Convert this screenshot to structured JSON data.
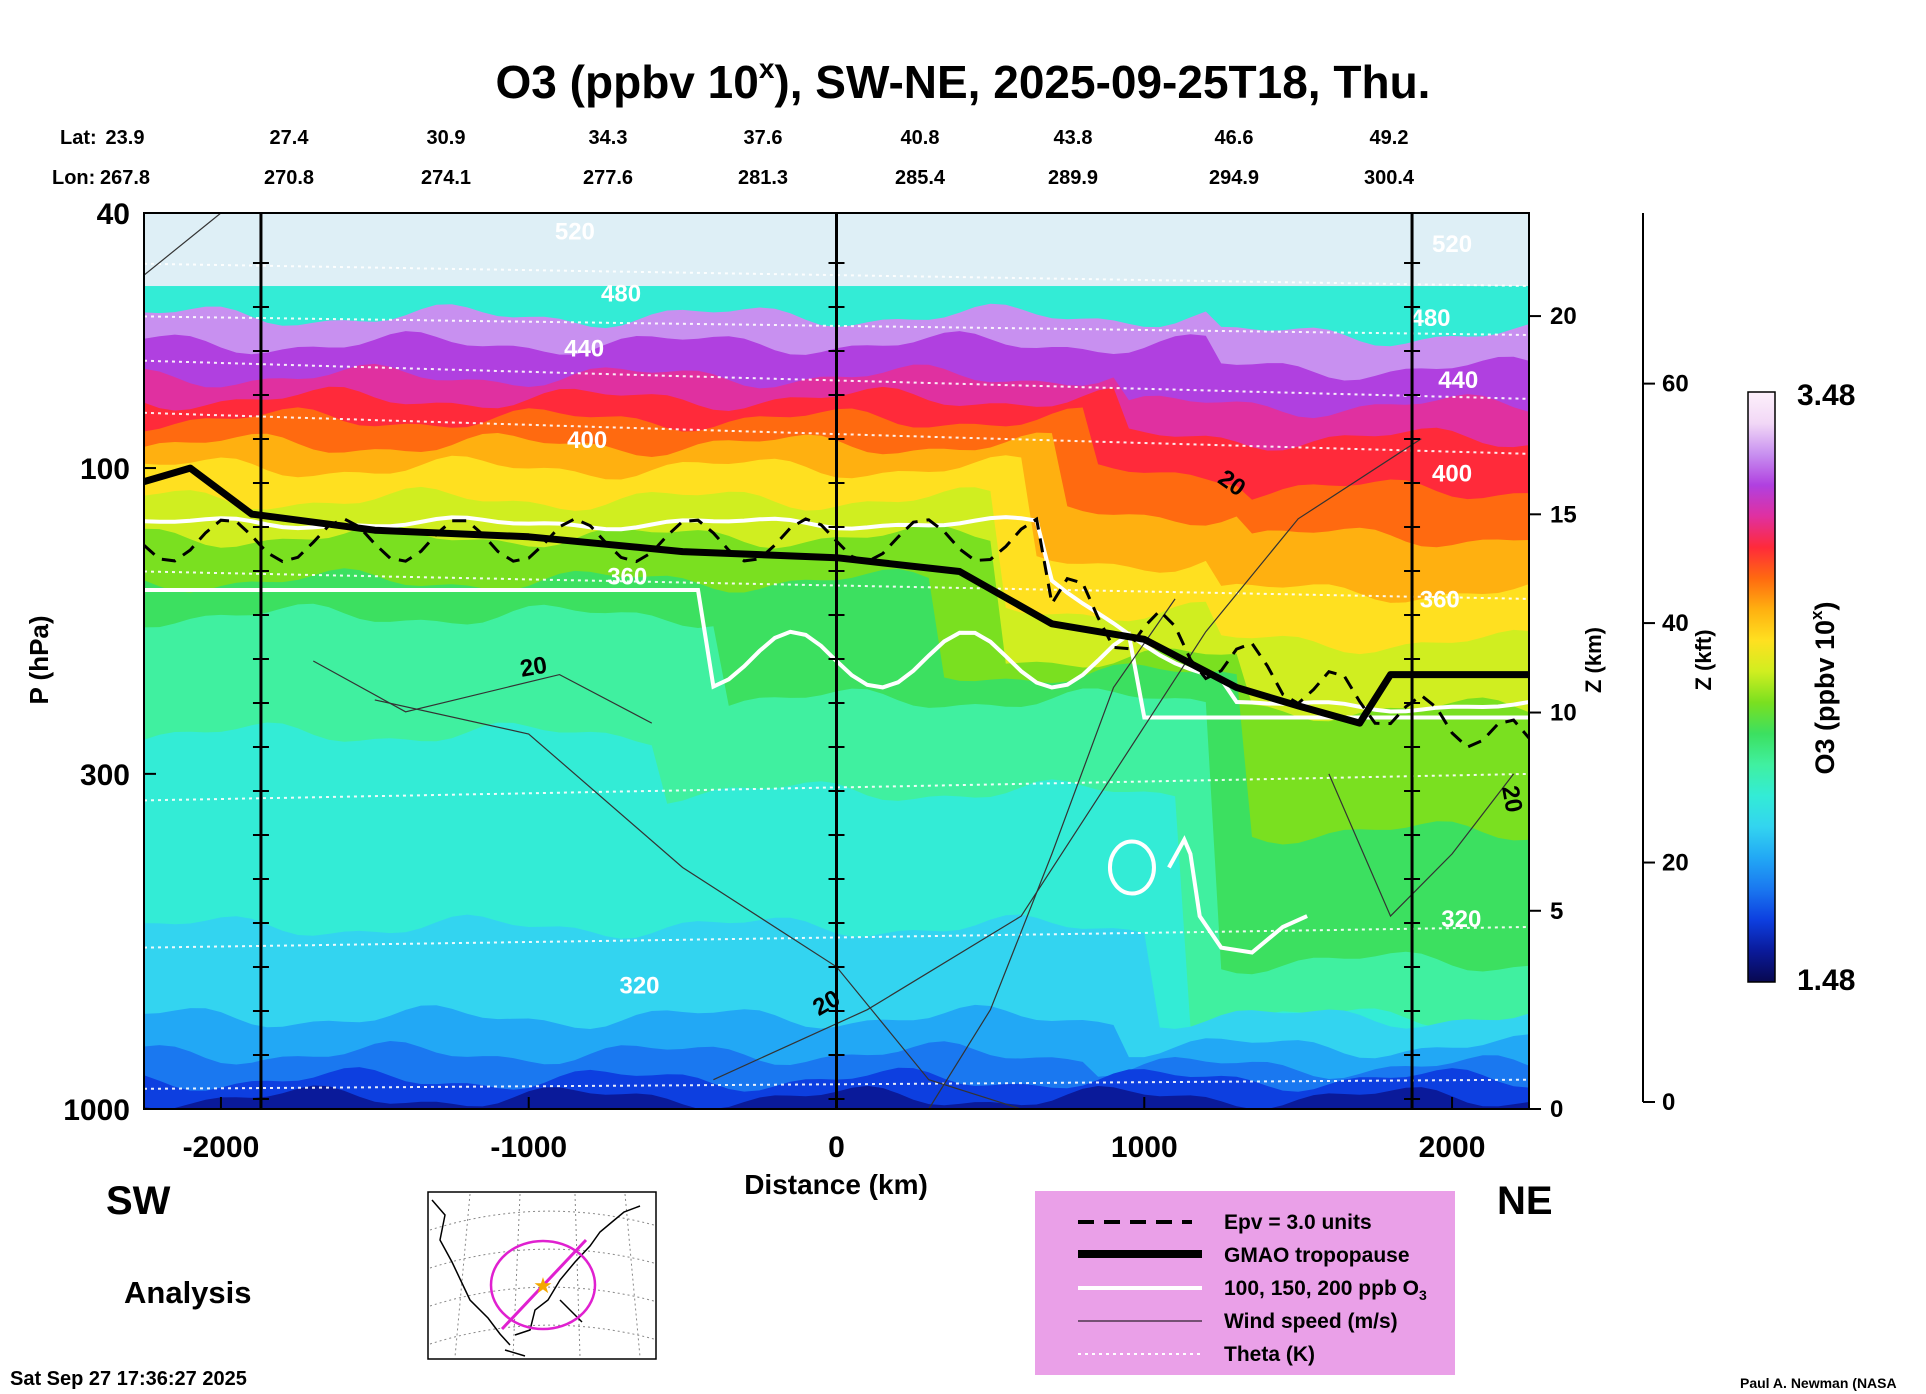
{
  "header": {
    "title_main": "O3 (ppbv 10",
    "title_sup": "x",
    "title_rest": "), SW-NE, 2025-09-25T18, Thu."
  },
  "coords": {
    "lat_label": "Lat:",
    "lon_label": "Lon:",
    "lat": [
      "23.9",
      "27.4",
      "30.9",
      "34.3",
      "37.6",
      "40.8",
      "43.8",
      "46.6",
      "49.2"
    ],
    "lon": [
      "267.8",
      "270.8",
      "274.1",
      "277.6",
      "281.3",
      "285.4",
      "289.9",
      "294.9",
      "300.4"
    ]
  },
  "chart_data": {
    "type": "heatmap",
    "xlabel": "Distance (km)",
    "ylabel": "P (hPa)",
    "xlim": [
      -2250,
      2250
    ],
    "ylim": [
      1000,
      40
    ],
    "x_ticks": [
      "-2000",
      "-1000",
      "0",
      "1000",
      "2000"
    ],
    "x_tick_values": [
      -2000,
      -1000,
      0,
      1000,
      2000
    ],
    "y_ticks": [
      "40",
      "100",
      "300",
      "1000"
    ],
    "y_tick_values": [
      40,
      100,
      300,
      1000
    ],
    "z_km_label": "Z (km)",
    "z_km_ticks": [
      "20",
      "15",
      "10",
      "5",
      "0"
    ],
    "z_km_values": [
      20,
      15,
      10,
      5,
      0
    ],
    "z_kft_label": "Z (kft)",
    "z_kft_ticks": [
      "60",
      "40",
      "20",
      "0"
    ],
    "z_kft_values": [
      60,
      40,
      20,
      0
    ],
    "colorbar_label_main": "O3 (ppbv 10",
    "colorbar_label_sup": "x",
    "colorbar_label_end": ")",
    "colorbar_max": "3.48",
    "colorbar_min": "1.48",
    "theta_labels": [
      {
        "text": "520",
        "x": -850,
        "p": 44
      },
      {
        "text": "480",
        "x": -700,
        "p": 55
      },
      {
        "text": "440",
        "x": -820,
        "p": 67
      },
      {
        "text": "400",
        "x": -810,
        "p": 93
      },
      {
        "text": "360",
        "x": -680,
        "p": 152
      },
      {
        "text": "320",
        "x": -640,
        "p": 660
      },
      {
        "text": "520",
        "x": 2000,
        "p": 46
      },
      {
        "text": "480",
        "x": 1930,
        "p": 60
      },
      {
        "text": "440",
        "x": 2020,
        "p": 75
      },
      {
        "text": "400",
        "x": 2000,
        "p": 105
      },
      {
        "text": "360",
        "x": 1960,
        "p": 165
      },
      {
        "text": "320",
        "x": 2030,
        "p": 520
      }
    ],
    "wind_labels": [
      {
        "text": "20",
        "x": -980,
        "p": 210,
        "rot": -10
      },
      {
        "text": "20",
        "x": -20,
        "p": 700,
        "rot": -30
      },
      {
        "text": "20",
        "x": 1270,
        "p": 108,
        "rot": 35
      },
      {
        "text": "20",
        "x": 2170,
        "p": 330,
        "rot": 80
      }
    ],
    "side_labels": {
      "left": "SW",
      "right": "NE",
      "analysis": "Analysis"
    },
    "legend": [
      {
        "label": "Epv = 3.0 units",
        "style": "dashed"
      },
      {
        "label": "GMAO tropopause",
        "style": "thick"
      },
      {
        "label": "100, 150, 200 ppb O",
        "sub": "3",
        "style": "white"
      },
      {
        "label": "Wind speed (m/s)",
        "style": "thin"
      },
      {
        "label": "Theta (K)",
        "style": "dotted"
      }
    ],
    "tropopause_p": [
      [
        -2250,
        105
      ],
      [
        -2100,
        100
      ],
      [
        -1900,
        118
      ],
      [
        -1500,
        125
      ],
      [
        -1000,
        128
      ],
      [
        -500,
        135
      ],
      [
        0,
        138
      ],
      [
        400,
        145
      ],
      [
        700,
        175
      ],
      [
        1000,
        185
      ],
      [
        1300,
        220
      ],
      [
        1500,
        235
      ],
      [
        1700,
        250
      ],
      [
        1800,
        210
      ],
      [
        2250,
        210
      ]
    ],
    "colors": {
      "levels": [
        "#080850",
        "#0a1a9a",
        "#0d3fe0",
        "#1a78f0",
        "#22a8f5",
        "#33d4f0",
        "#33ecd6",
        "#40f0a0",
        "#3ce060",
        "#7ae020",
        "#d0ee20",
        "#ffe020",
        "#ffb010",
        "#ff6a10",
        "#ff2a3a",
        "#e030a0",
        "#b040e0",
        "#c890f0",
        "#f2d8f6",
        "#fdf0fb"
      ],
      "legend_bg": "#eaa0e8",
      "map_ring": "#e020d0"
    }
  },
  "footer": {
    "timestamp": "Sat Sep 27 17:36:27 2025",
    "credit": "Paul A. Newman (NASA"
  }
}
